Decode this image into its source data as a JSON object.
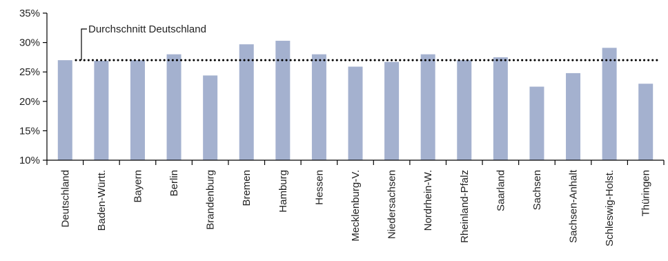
{
  "chart_data": {
    "type": "bar",
    "categories": [
      "Deutschland",
      "Baden-Württ.",
      "Bayern",
      "Berlin",
      "Brandenburg",
      "Bremen",
      "Hamburg",
      "Hessen",
      "Mecklenburg-V.",
      "Niedersachsen",
      "Nordrhein-W.",
      "Rheinland-Pfalz",
      "Saarland",
      "Sachsen",
      "Sachsen-Anhalt",
      "Schleswig-Holst.",
      "Thüringen"
    ],
    "values": [
      27.0,
      26.9,
      27.0,
      28.0,
      24.4,
      29.7,
      30.3,
      28.0,
      25.9,
      26.7,
      28.0,
      27.0,
      27.5,
      22.5,
      24.8,
      29.1,
      23.0
    ],
    "ylim": [
      10,
      35
    ],
    "yticks": [
      10,
      15,
      20,
      25,
      30,
      35
    ],
    "ytick_format": "%",
    "reference_line": {
      "value": 27.0,
      "label": "Durchschnitt Deutschland",
      "style": "dotted"
    },
    "bar_color": "#a4b1cf",
    "grid": false,
    "title": "",
    "xlabel": "",
    "ylabel": ""
  }
}
